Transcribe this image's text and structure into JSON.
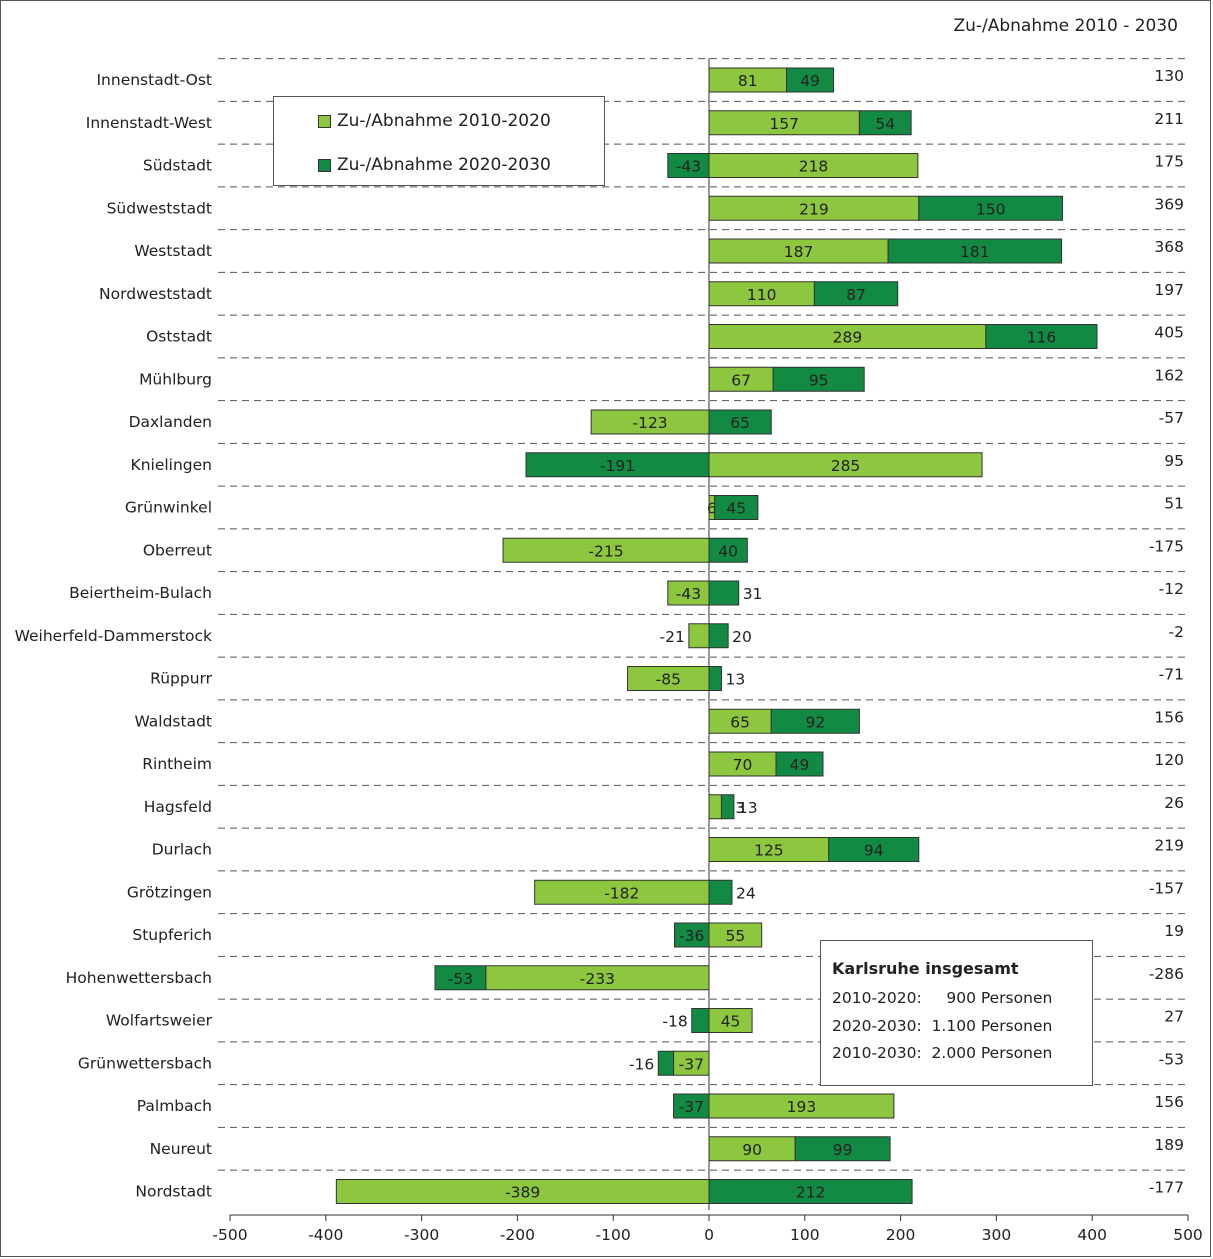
{
  "chart_data": {
    "type": "bar",
    "title": "Zu-/Abnahme 2010 - 2030",
    "categories": [
      "Innenstadt-Ost",
      "Innenstadt-West",
      "Südstadt",
      "Südweststadt",
      "Weststadt",
      "Nordweststadt",
      "Oststadt",
      "Mühlburg",
      "Daxlanden",
      "Knielingen",
      "Grünwinkel",
      "Oberreut",
      "Beiertheim-Bulach",
      "Weiherfeld-Dammerstock",
      "Rüppurr",
      "Waldstadt",
      "Rintheim",
      "Hagsfeld",
      "Durlach",
      "Grötzingen",
      "Stupferich",
      "Hohenwettersbach",
      "Wolfartsweier",
      "Grünwettersbach",
      "Palmbach",
      "Neureut",
      "Nordstadt"
    ],
    "series": [
      {
        "name": "Zu-/Abnahme 2010-2020",
        "color": "#8dc63f",
        "values": [
          81,
          157,
          218,
          219,
          187,
          110,
          289,
          67,
          -123,
          285,
          6,
          -215,
          -43,
          -21,
          -85,
          65,
          70,
          13,
          125,
          -182,
          55,
          -233,
          45,
          -37,
          193,
          90,
          -389
        ]
      },
      {
        "name": "Zu-/Abnahme 2020-2030",
        "color": "#138a44",
        "values": [
          49,
          54,
          -43,
          150,
          181,
          87,
          116,
          95,
          65,
          -191,
          45,
          40,
          31,
          20,
          13,
          92,
          49,
          13,
          94,
          24,
          -36,
          -53,
          -18,
          -16,
          -37,
          99,
          212
        ]
      }
    ],
    "value_labels_2010_2020": [
      "81",
      "157",
      "218",
      "219",
      "187",
      "110",
      "289",
      "67",
      "-123",
      "285",
      "6",
      "-215",
      "-43",
      "-21",
      "-85",
      "65",
      "70",
      "13",
      "125",
      "-182",
      "55",
      "-233",
      "45",
      "-37",
      "193",
      "90",
      "-389"
    ],
    "value_labels_2020_2030": [
      "49",
      "54",
      "-43",
      "150",
      "181",
      "87",
      "116",
      "95",
      "65",
      "-191",
      "45",
      "40",
      "31",
      "20",
      "13",
      "92",
      "49",
      "13",
      "94",
      "24",
      "-36",
      "-53",
      "-18",
      "-16",
      "-37",
      "99",
      "212"
    ],
    "totals": [
      "130",
      "211",
      "175",
      "369",
      "368",
      "197",
      "405",
      "162",
      "-57",
      "95",
      "51",
      "-175",
      "-12",
      "-2",
      "-71",
      "156",
      "120",
      "26",
      "219",
      "-157",
      "19",
      "-286",
      "27",
      "-53",
      "156",
      "189",
      "-177"
    ],
    "xlim": [
      -500,
      500
    ],
    "xticks": [
      "-500",
      "-400",
      "-300",
      "-200",
      "-100",
      "0",
      "100",
      "200",
      "300",
      "400",
      "500"
    ],
    "grid": "dashed horizontal separators between categories",
    "legend_position": "top-left"
  },
  "summary_box": {
    "title": "Karlsruhe insgesamt",
    "lines": [
      "2010-2020:     900 Personen",
      "2020-2030:  1.100 Personen",
      "2010-2030:  2.000 Personen"
    ]
  }
}
